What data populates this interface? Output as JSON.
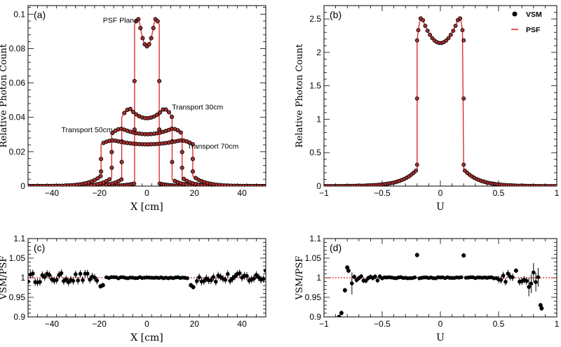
{
  "colors": {
    "marker": "#000000",
    "line": "#e02020",
    "marker_fill": "#b03030",
    "ref_line": "#e02020",
    "frame": "#000000"
  },
  "chart_data": [
    {
      "id": "a",
      "type": "line",
      "panel_label": "(a)",
      "xlabel": "X [cm]",
      "ylabel": "Relative Photon Count",
      "xlim": [
        -50,
        50
      ],
      "ylim": [
        0,
        0.105
      ],
      "xticks": [
        -40,
        -20,
        0,
        20,
        40
      ],
      "xtick_labels": [
        "−40",
        "−20",
        "0",
        "20",
        "40"
      ],
      "yticks": [
        0,
        0.02,
        0.04,
        0.06,
        0.08,
        0.1
      ],
      "ytick_labels": [
        "0",
        "0.02",
        "0.04",
        "0.06",
        "0.08",
        "0.1"
      ],
      "legend": null,
      "series": [
        {
          "name": "PSF Plane",
          "half_width": 5.2,
          "center": 0.0813,
          "edge": 0.0972,
          "edge_pos": 3.3,
          "wall": 0.094,
          "tail": 0.0015,
          "tail_decay": 4
        },
        {
          "name": "Transport 30cm",
          "half_width": 10.6,
          "center": 0.0395,
          "edge": 0.0449,
          "edge_pos": 7.0,
          "wall": 0.04,
          "tail": 0.004,
          "tail_decay": 4
        },
        {
          "name": "Transport 50cm",
          "half_width": 14.8,
          "center": 0.0302,
          "edge": 0.0334,
          "edge_pos": 10.5,
          "wall": 0.0305,
          "tail": 0.005,
          "tail_decay": 4
        },
        {
          "name": "Transport 70cm",
          "half_width": 19.3,
          "center": 0.0243,
          "edge": 0.0266,
          "edge_pos": 14.0,
          "wall": 0.0243,
          "tail": 0.006,
          "tail_decay": 5
        }
      ],
      "annotations": [
        {
          "text": "PSF Plane",
          "x": -18.5,
          "y": 0.095
        },
        {
          "text": "Transport 30cm",
          "x": 10.5,
          "y": 0.0445
        },
        {
          "text": "Transport 50cm",
          "x": -36,
          "y": 0.0314
        },
        {
          "text": "Transport 70cm",
          "x": 17,
          "y": 0.0217
        }
      ]
    },
    {
      "id": "b",
      "type": "line",
      "panel_label": "(b)",
      "xlabel": "U",
      "ylabel": "Relative Photon Count",
      "xlim": [
        -1,
        1
      ],
      "ylim": [
        0,
        2.7
      ],
      "xticks": [
        -1,
        -0.5,
        0,
        0.5,
        1
      ],
      "xtick_labels": [
        "−1",
        "−0.5",
        "0",
        "0.5",
        "1"
      ],
      "yticks": [
        0,
        0.5,
        1,
        1.5,
        2,
        2.5
      ],
      "ytick_labels": [
        "0",
        "0.5",
        "1",
        "1.5",
        "2",
        "2.5"
      ],
      "legend": [
        {
          "label": "VSM",
          "kind": "marker"
        },
        {
          "label": "PSF",
          "kind": "line"
        }
      ],
      "series": [
        {
          "name": "VSM / PSF",
          "half_width": 0.2,
          "center": 2.14,
          "edge": 2.53,
          "edge_pos": 0.16,
          "wall_values": [
            0.32,
            1.31,
            2.18
          ],
          "tail_at_edge": 0.25,
          "tail_decay": 0.13
        }
      ]
    },
    {
      "id": "c",
      "type": "scatter",
      "panel_label": "(c)",
      "xlabel": "X [cm]",
      "ylabel": "VSM/PSF",
      "xlim": [
        -50,
        50
      ],
      "ylim": [
        0.9,
        1.1
      ],
      "xticks": [
        -40,
        -20,
        0,
        20,
        40
      ],
      "xtick_labels": [
        "−40",
        "−20",
        "0",
        "20",
        "40"
      ],
      "yticks": [
        0.9,
        0.95,
        1,
        1.05,
        1.1
      ],
      "ytick_labels": [
        "0.9",
        "0.95",
        "1",
        "1.05",
        "1.1"
      ],
      "reference_y": 1,
      "x_step": 1,
      "noise_regions": [
        {
          "from": -50,
          "to": -20,
          "amp": 0.012
        },
        {
          "from": 20,
          "to": 50,
          "amp": 0.012
        }
      ],
      "outliers": [
        {
          "x": -19.5,
          "y": 0.978
        },
        {
          "x": -18.5,
          "y": 0.981
        },
        {
          "x": 18.5,
          "y": 0.981
        },
        {
          "x": 19.5,
          "y": 0.976
        },
        {
          "x": 50,
          "y": 1.018
        }
      ]
    },
    {
      "id": "d",
      "type": "scatter",
      "panel_label": "(d)",
      "xlabel": "U",
      "ylabel": "VSM/PSF",
      "xlim": [
        -1,
        1
      ],
      "ylim": [
        0.9,
        1.1
      ],
      "xticks": [
        -1,
        -0.5,
        0,
        0.5,
        1
      ],
      "xtick_labels": [
        "−1",
        "−0.5",
        "0",
        "0.5",
        "1"
      ],
      "yticks": [
        0.9,
        0.95,
        1,
        1.05,
        1.1
      ],
      "ytick_labels": [
        "0.9",
        "0.95",
        "1",
        "1.05",
        "1.1"
      ],
      "reference_y": 1,
      "x_start": -0.88,
      "x_end": 0.88,
      "x_step": 0.02,
      "noise_regions": [
        {
          "from": -0.88,
          "to": -0.75,
          "amp": 0.035
        },
        {
          "from": -0.75,
          "to": -0.5,
          "amp": 0.008
        },
        {
          "from": 0.5,
          "to": 0.75,
          "amp": 0.012
        },
        {
          "from": 0.75,
          "to": 0.88,
          "amp": 0.03
        }
      ],
      "outliers": [
        {
          "x": -0.87,
          "y": 0.9
        },
        {
          "x": -0.85,
          "y": 0.91
        },
        {
          "x": -0.82,
          "y": 0.968
        },
        {
          "x": -0.8,
          "y": 1.026
        },
        {
          "x": -0.79,
          "y": 1.018
        },
        {
          "x": -0.2,
          "y": 1.058
        },
        {
          "x": 0.2,
          "y": 1.057
        },
        {
          "x": 0.65,
          "y": 1.018
        },
        {
          "x": 0.86,
          "y": 0.93
        },
        {
          "x": 0.87,
          "y": 0.922
        }
      ]
    }
  ]
}
